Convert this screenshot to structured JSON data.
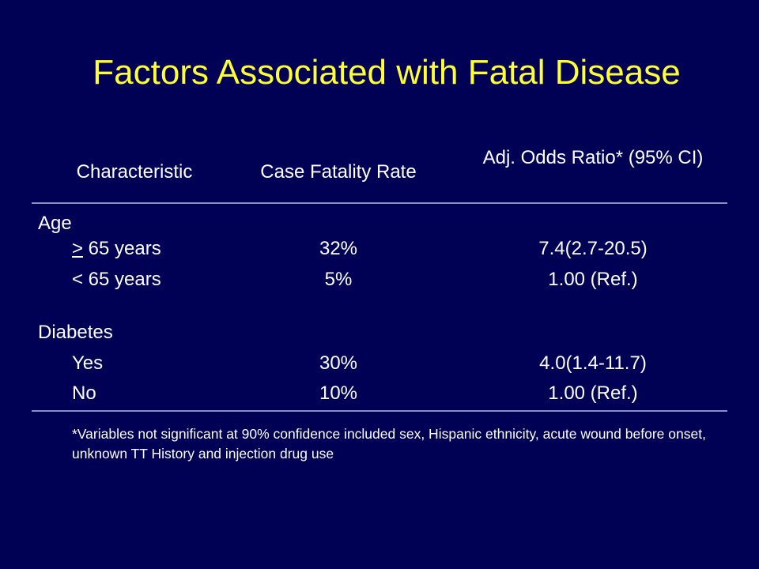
{
  "slide": {
    "title": "Factors Associated with Fatal Disease"
  },
  "table": {
    "headers": {
      "characteristic": "Characteristic",
      "case_fatality_rate": "Case Fatality Rate",
      "odds_ratio": "Adj. Odds Ratio* (95% CI)"
    },
    "groups": [
      {
        "label": "Age",
        "rows": [
          {
            "symbol": ">",
            "label": " 65 years",
            "rate": "32%",
            "odds": "7.4(2.7-20.5)"
          },
          {
            "symbol": "",
            "label": "< 65 years",
            "rate": "5%",
            "odds": "1.00 (Ref.)"
          }
        ]
      },
      {
        "label": "Diabetes",
        "rows": [
          {
            "symbol": "",
            "label": "Yes",
            "rate": "30%",
            "odds": "4.0(1.4-11.7)"
          },
          {
            "symbol": "",
            "label": "No",
            "rate": "10%",
            "odds": "1.00 (Ref.)"
          }
        ]
      }
    ]
  },
  "footnote": "*Variables not significant at 90% confidence included sex, Hispanic ethnicity, acute wound before onset, unknown TT History and injection drug use",
  "colors": {
    "background": "#000055",
    "title": "#ffff33",
    "text": "#ffffff",
    "rule": "#8a8fc0"
  }
}
